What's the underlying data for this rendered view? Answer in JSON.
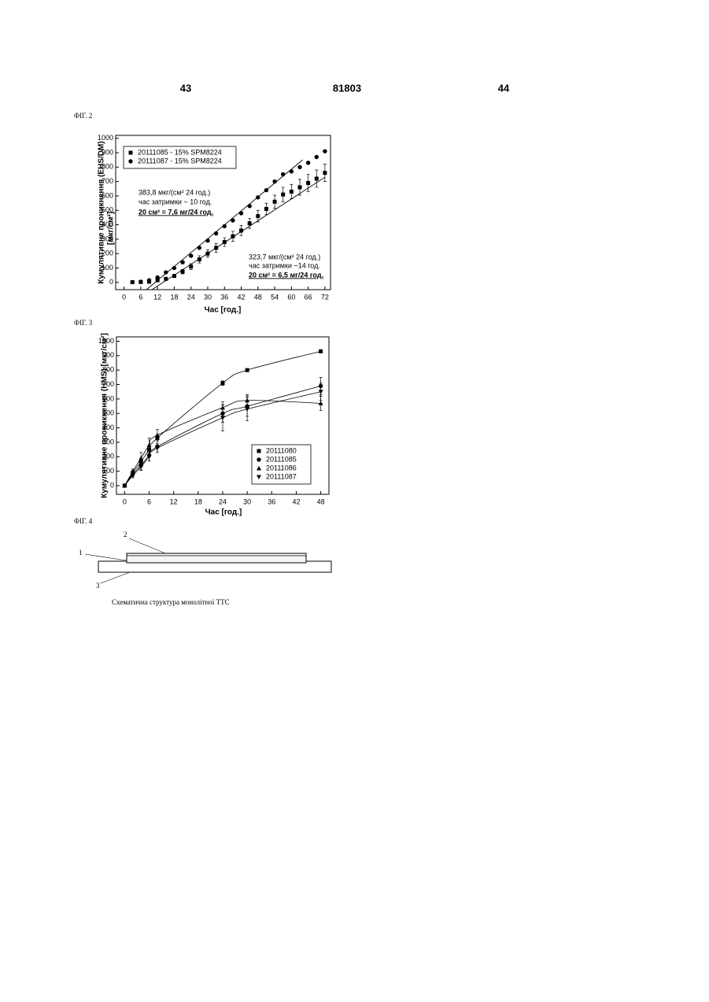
{
  "header": {
    "left_page": "43",
    "patent_number": "81803",
    "right_page": "44"
  },
  "figures": [
    "ФІГ. 2",
    "ФІГ. 3",
    "ФІГ. 4"
  ],
  "chart_data": [
    {
      "type": "scatter",
      "ylabel": "Кумулятивне проникнення (EHS/DM)",
      "ylabel_unit": "[мкг/см²]",
      "xlabel": "Час [год.]",
      "xlim": [
        -3,
        74
      ],
      "xticks": [
        0,
        6,
        12,
        18,
        24,
        30,
        36,
        42,
        48,
        54,
        60,
        66,
        72
      ],
      "ylim": [
        -50,
        1020
      ],
      "yticks": [
        0,
        100,
        200,
        300,
        400,
        500,
        600,
        700,
        800,
        900,
        1000
      ],
      "annotations": [
        "383,8 мкг/(см² 24 год.)",
        "час затримки ~ 10 год.",
        "20 см² = 7,6 мг/24 год.",
        "323,7 мкг/(см² 24 год.)",
        "час затримки ~14 год.",
        "20 см² = 6,5 мг/24 год."
      ],
      "series": [
        {
          "name": "20111085 - 15% SPM8224",
          "color": "#000000",
          "marker": "square",
          "x": [
            3,
            6,
            9,
            12,
            15,
            18,
            21,
            24,
            27,
            30,
            33,
            36,
            39,
            42,
            45,
            48,
            51,
            54,
            57,
            60,
            63,
            66,
            69,
            72
          ],
          "values": [
            2,
            3,
            5,
            15,
            25,
            45,
            75,
            110,
            160,
            200,
            240,
            280,
            320,
            360,
            410,
            460,
            510,
            560,
            610,
            630,
            660,
            690,
            720,
            760
          ],
          "errors": [
            2,
            2,
            3,
            5,
            8,
            10,
            15,
            20,
            25,
            25,
            30,
            30,
            35,
            35,
            35,
            40,
            40,
            45,
            50,
            50,
            55,
            60,
            60,
            60
          ]
        },
        {
          "name": "20111087 - 15% SPM8224",
          "color": "#000000",
          "marker": "circle",
          "x": [
            3,
            6,
            9,
            12,
            15,
            18,
            21,
            24,
            27,
            30,
            33,
            36,
            39,
            42,
            45,
            48,
            51,
            54,
            57,
            60,
            63,
            66,
            69,
            72
          ],
          "values": [
            2,
            5,
            15,
            35,
            70,
            100,
            140,
            185,
            240,
            290,
            340,
            390,
            430,
            480,
            530,
            590,
            640,
            700,
            750,
            770,
            800,
            830,
            870,
            910
          ]
        }
      ],
      "fit_lines": [
        {
          "x": [
            8,
            64
          ],
          "values": [
            -50,
            850
          ]
        },
        {
          "x": [
            10,
            72
          ],
          "values": [
            -50,
            730
          ]
        }
      ]
    },
    {
      "type": "scatter",
      "ylabel": "Кумулятивне проникнення (HMS) [мкг/см²]",
      "xlabel": "Час [год.]",
      "xlim": [
        -2,
        50
      ],
      "xticks": [
        0,
        6,
        12,
        18,
        24,
        30,
        36,
        42,
        48
      ],
      "ylim": [
        -60,
        1030
      ],
      "yticks": [
        0,
        100,
        200,
        300,
        400,
        500,
        600,
        700,
        800,
        900,
        1000
      ],
      "curves": true,
      "series": [
        {
          "name": "20111080",
          "color": "#000000",
          "marker": "square",
          "x": [
            0,
            2,
            4,
            6,
            8,
            24,
            30,
            48
          ],
          "values": [
            0,
            90,
            165,
            250,
            330,
            710,
            800,
            930
          ],
          "errors": [
            0,
            10,
            10,
            10,
            10,
            15,
            10,
            10
          ]
        },
        {
          "name": "20111085",
          "color": "#000000",
          "marker": "circle",
          "x": [
            0,
            2,
            4,
            6,
            8,
            24,
            30,
            48
          ],
          "values": [
            0,
            80,
            140,
            210,
            270,
            500,
            550,
            690
          ],
          "errors": [
            0,
            15,
            30,
            40,
            40,
            60,
            70,
            60
          ]
        },
        {
          "name": "20111086",
          "color": "#000000",
          "marker": "triangle-up",
          "x": [
            0,
            2,
            4,
            6,
            8,
            24,
            30,
            48
          ],
          "values": [
            0,
            100,
            190,
            280,
            350,
            540,
            590,
            570
          ],
          "errors": [
            0,
            15,
            40,
            50,
            40,
            40,
            40,
            50
          ]
        },
        {
          "name": "20111087",
          "color": "#000000",
          "marker": "triangle-down",
          "x": [
            0,
            2,
            4,
            6,
            8,
            24,
            30,
            48
          ],
          "values": [
            0,
            70,
            130,
            200,
            260,
            470,
            530,
            650
          ],
          "errors": [
            0,
            15,
            25,
            30,
            30,
            90,
            80,
            60
          ]
        }
      ]
    }
  ],
  "figure4": {
    "labels": [
      "1",
      "2",
      "3"
    ],
    "caption": "Схематична структура монолітної ТТС"
  }
}
